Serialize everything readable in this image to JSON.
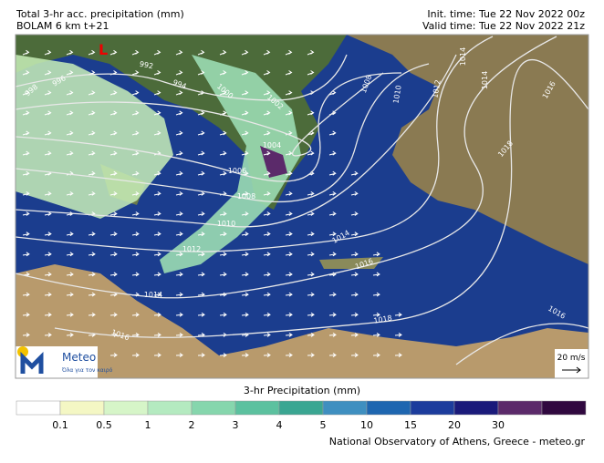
{
  "header": {
    "title": "Total 3-hr acc. precipitation (mm)",
    "model": "BOLAM 6 km t+21",
    "init_time": "Init. time: Tue 22 Nov 2022 00z",
    "valid_time": "Valid time: Tue 22 Nov 2022 21z"
  },
  "map": {
    "low_marker": "L",
    "isobar_labels": [
      "996",
      "998",
      "992",
      "994",
      "1000",
      "1002",
      "1004",
      "1006",
      "1008",
      "1010",
      "1012",
      "1014",
      "1014",
      "1016",
      "1016",
      "1018",
      "1016",
      "1008",
      "1010",
      "1012",
      "1014",
      "1014",
      "1016",
      "1018"
    ],
    "wind_scale": "20 m/s"
  },
  "logo": {
    "name": "Meteo",
    "tagline": "Όλα για τον καιρό"
  },
  "legend": {
    "title": "3-hr Precipitation (mm)",
    "labels": [
      "0.1",
      "0.5",
      "1",
      "2",
      "3",
      "4",
      "5",
      "10",
      "15",
      "20",
      "30"
    ],
    "colors": [
      "#ffffff",
      "#f4f7c4",
      "#d6f5c8",
      "#b4eac0",
      "#86d6ad",
      "#5cc19f",
      "#3aa692",
      "#3f8fc0",
      "#1e66b0",
      "#1c3c9c",
      "#1a1a7a",
      "#5b2a6a",
      "#30083f"
    ]
  },
  "footer": "National Observatory of Athens, Greece - meteo.gr"
}
